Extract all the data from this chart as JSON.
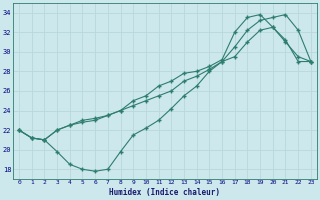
{
  "xlabel": "Humidex (Indice chaleur)",
  "xlim": [
    -0.5,
    23.5
  ],
  "ylim": [
    17,
    35
  ],
  "yticks": [
    18,
    20,
    22,
    24,
    26,
    28,
    30,
    32,
    34
  ],
  "xticks": [
    0,
    1,
    2,
    3,
    4,
    5,
    6,
    7,
    8,
    9,
    10,
    11,
    12,
    13,
    14,
    15,
    16,
    17,
    18,
    19,
    20,
    21,
    22,
    23
  ],
  "bg_color": "#cce8ec",
  "grid_color": "#b8d8dc",
  "line_color": "#2e7d6e",
  "curve1_x": [
    0,
    1,
    2,
    3,
    4,
    5,
    6,
    7,
    8,
    9,
    10,
    11,
    12,
    13,
    14,
    15,
    16,
    17,
    18,
    19,
    20,
    21,
    22,
    23
  ],
  "curve1_y": [
    22.0,
    21.2,
    21.0,
    19.8,
    18.5,
    18.0,
    17.8,
    18.0,
    19.8,
    21.5,
    22.2,
    23.0,
    24.2,
    25.5,
    26.5,
    28.0,
    29.0,
    29.5,
    31.0,
    32.2,
    32.5,
    31.0,
    29.5,
    29.0
  ],
  "curve2_x": [
    0,
    1,
    2,
    3,
    4,
    5,
    6,
    7,
    8,
    9,
    10,
    11,
    12,
    13,
    14,
    15,
    16,
    17,
    18,
    19,
    20,
    21,
    22,
    23
  ],
  "curve2_y": [
    22.0,
    21.2,
    21.0,
    22.0,
    22.5,
    22.8,
    23.0,
    23.5,
    24.0,
    24.5,
    25.0,
    25.5,
    26.0,
    27.0,
    27.5,
    28.2,
    29.0,
    30.5,
    32.2,
    33.2,
    33.5,
    33.8,
    32.2,
    29.0
  ],
  "curve3_x": [
    0,
    1,
    2,
    3,
    4,
    5,
    6,
    7,
    8,
    9,
    10,
    11,
    12,
    13,
    14,
    15,
    16,
    17,
    18,
    19,
    20,
    21,
    22,
    23
  ],
  "curve3_y": [
    22.0,
    21.2,
    21.0,
    22.0,
    22.5,
    23.0,
    23.2,
    23.5,
    24.0,
    25.0,
    25.5,
    26.5,
    27.0,
    27.8,
    28.0,
    28.5,
    29.2,
    32.0,
    33.5,
    33.8,
    32.5,
    31.2,
    29.0,
    29.0
  ]
}
